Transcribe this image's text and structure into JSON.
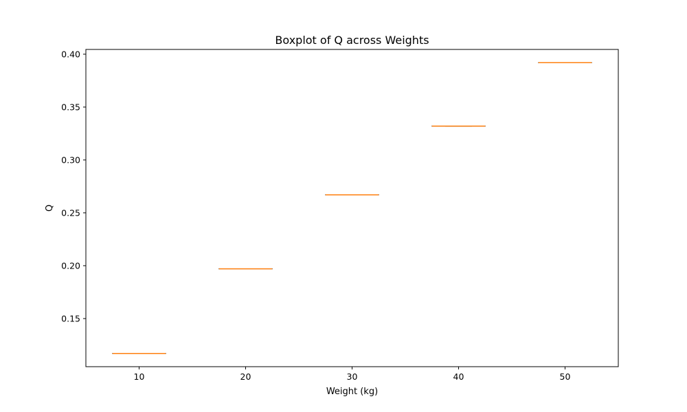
{
  "chart_data": {
    "type": "box",
    "title": "Boxplot of Q across Weights",
    "xlabel": "Weight (kg)",
    "ylabel": "Q",
    "categories": [
      "10",
      "20",
      "30",
      "40",
      "50"
    ],
    "x": [
      10,
      20,
      30,
      40,
      50
    ],
    "values": [
      0.117,
      0.197,
      0.267,
      0.332,
      0.392
    ],
    "boxes": [
      {
        "x": 10,
        "min": 0.117,
        "q1": 0.117,
        "median": 0.117,
        "q3": 0.117,
        "max": 0.117
      },
      {
        "x": 20,
        "min": 0.197,
        "q1": 0.197,
        "median": 0.197,
        "q3": 0.197,
        "max": 0.197
      },
      {
        "x": 30,
        "min": 0.267,
        "q1": 0.267,
        "median": 0.267,
        "q3": 0.267,
        "max": 0.267
      },
      {
        "x": 40,
        "min": 0.332,
        "q1": 0.332,
        "median": 0.332,
        "q3": 0.332,
        "max": 0.332
      },
      {
        "x": 50,
        "min": 0.392,
        "q1": 0.392,
        "median": 0.392,
        "q3": 0.392,
        "max": 0.392
      }
    ],
    "xlim": [
      5,
      55
    ],
    "ylim": [
      0.1045,
      0.4045
    ],
    "xticks": [
      10,
      20,
      30,
      40,
      50
    ],
    "yticks": [
      0.15,
      0.2,
      0.25,
      0.3,
      0.35,
      0.4
    ],
    "ytick_labels": [
      "0.15",
      "0.20",
      "0.25",
      "0.30",
      "0.35",
      "0.40"
    ],
    "grid": false,
    "colors": {
      "box": "#000000",
      "median": "#ff7f0e",
      "axis": "#000000"
    }
  }
}
